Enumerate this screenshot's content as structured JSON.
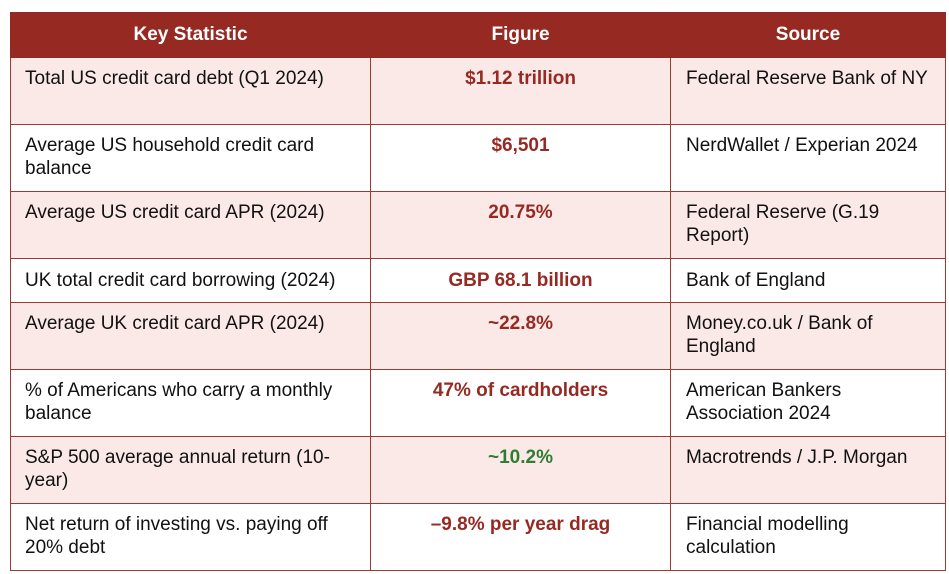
{
  "colors": {
    "header_bg": "#962a23",
    "header_text": "#ffffff",
    "row_pink": "#fbe9e8",
    "row_white": "#ffffff",
    "figure_red": "#962a23",
    "figure_green": "#2e7d32"
  },
  "table": {
    "headers": [
      "Key Statistic",
      "Figure",
      "Source"
    ],
    "rows": [
      {
        "statistic": "Total US credit card debt (Q1 2024)",
        "figure": "$1.12 trillion",
        "source": "Federal Reserve Bank of NY",
        "figure_color": "red",
        "shade": "pink"
      },
      {
        "statistic": "Average US household credit card balance",
        "figure": "$6,501",
        "source": "NerdWallet / Experian 2024",
        "figure_color": "red",
        "shade": "white"
      },
      {
        "statistic": "Average US credit card APR (2024)",
        "figure": "20.75%",
        "source": "Federal Reserve (G.19 Report)",
        "figure_color": "red",
        "shade": "pink"
      },
      {
        "statistic": "UK total credit card borrowing (2024)",
        "figure": "GBP 68.1 billion",
        "source": "Bank of England",
        "figure_color": "red",
        "shade": "white"
      },
      {
        "statistic": "Average UK credit card APR (2024)",
        "figure": "~22.8%",
        "source": "Money.co.uk / Bank of England",
        "figure_color": "red",
        "shade": "pink"
      },
      {
        "statistic": "% of Americans who carry a monthly balance",
        "figure": "47% of cardholders",
        "source": "American Bankers Association 2024",
        "figure_color": "red",
        "shade": "white"
      },
      {
        "statistic": "S&P 500 average annual return (10-year)",
        "figure": "~10.2%",
        "source": "Macrotrends / J.P. Morgan",
        "figure_color": "green",
        "shade": "pink"
      },
      {
        "statistic": "Net return of investing vs. paying off 20% debt",
        "figure": "–9.8% per year drag",
        "source": "Financial modelling calculation",
        "figure_color": "red",
        "shade": "white"
      }
    ]
  }
}
